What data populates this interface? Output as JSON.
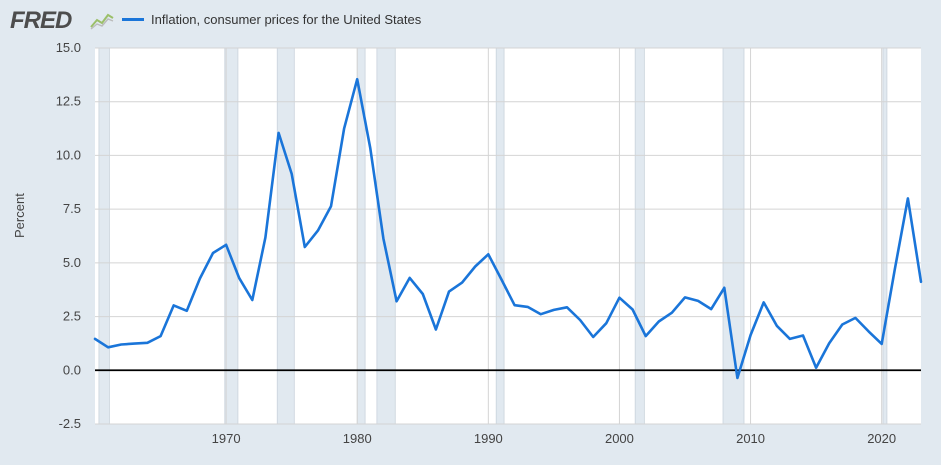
{
  "header": {
    "logo_text": "FRED",
    "logo_icon": "line-chart-icon"
  },
  "colors": {
    "background": "#e1e9f0",
    "plot_background": "#ffffff",
    "series_line": "#1a75d9",
    "recession_shading": "#e1e9f0",
    "zero_line": "#000000"
  },
  "chart_data": {
    "type": "line",
    "title": "",
    "xlabel": "",
    "ylabel": "Percent",
    "xlim": [
      1960,
      2023
    ],
    "ylim": [
      -2.5,
      15.0
    ],
    "grid": true,
    "legend": "top-left",
    "x_ticks": [
      1970,
      1980,
      1990,
      2000,
      2010,
      2020
    ],
    "y_ticks": [
      -2.5,
      0.0,
      2.5,
      5.0,
      7.5,
      10.0,
      12.5,
      15.0
    ],
    "recessions": [
      [
        1960.3,
        1961.1
      ],
      [
        1969.9,
        1970.9
      ],
      [
        1973.9,
        1975.2
      ],
      [
        1980.0,
        1980.6
      ],
      [
        1981.5,
        1982.9
      ],
      [
        1990.6,
        1991.2
      ],
      [
        2001.2,
        2001.9
      ],
      [
        2007.9,
        2009.5
      ],
      [
        2020.1,
        2020.4
      ]
    ],
    "series": [
      {
        "name": "Inflation, consumer prices for the United States",
        "x": [
          1960,
          1961,
          1962,
          1963,
          1964,
          1965,
          1966,
          1967,
          1968,
          1969,
          1970,
          1971,
          1972,
          1973,
          1974,
          1975,
          1976,
          1977,
          1978,
          1979,
          1980,
          1981,
          1982,
          1983,
          1984,
          1985,
          1986,
          1987,
          1988,
          1989,
          1990,
          1991,
          1992,
          1993,
          1994,
          1995,
          1996,
          1997,
          1998,
          1999,
          2000,
          2001,
          2002,
          2003,
          2004,
          2005,
          2006,
          2007,
          2008,
          2009,
          2010,
          2011,
          2012,
          2013,
          2014,
          2015,
          2016,
          2017,
          2018,
          2019,
          2020,
          2021,
          2022,
          2023
        ],
        "values": [
          1.46,
          1.07,
          1.2,
          1.24,
          1.28,
          1.59,
          3.02,
          2.77,
          4.27,
          5.46,
          5.84,
          4.29,
          3.27,
          6.18,
          11.05,
          9.14,
          5.74,
          6.5,
          7.63,
          11.25,
          13.55,
          10.33,
          6.13,
          3.21,
          4.3,
          3.55,
          1.9,
          3.66,
          4.08,
          4.83,
          5.4,
          4.23,
          3.03,
          2.95,
          2.61,
          2.81,
          2.93,
          2.34,
          1.55,
          2.19,
          3.38,
          2.83,
          1.59,
          2.27,
          2.68,
          3.39,
          3.23,
          2.85,
          3.84,
          -0.36,
          1.64,
          3.16,
          2.07,
          1.46,
          1.62,
          0.12,
          1.26,
          2.13,
          2.44,
          1.81,
          1.23,
          4.7,
          8.0,
          4.12
        ]
      }
    ]
  }
}
